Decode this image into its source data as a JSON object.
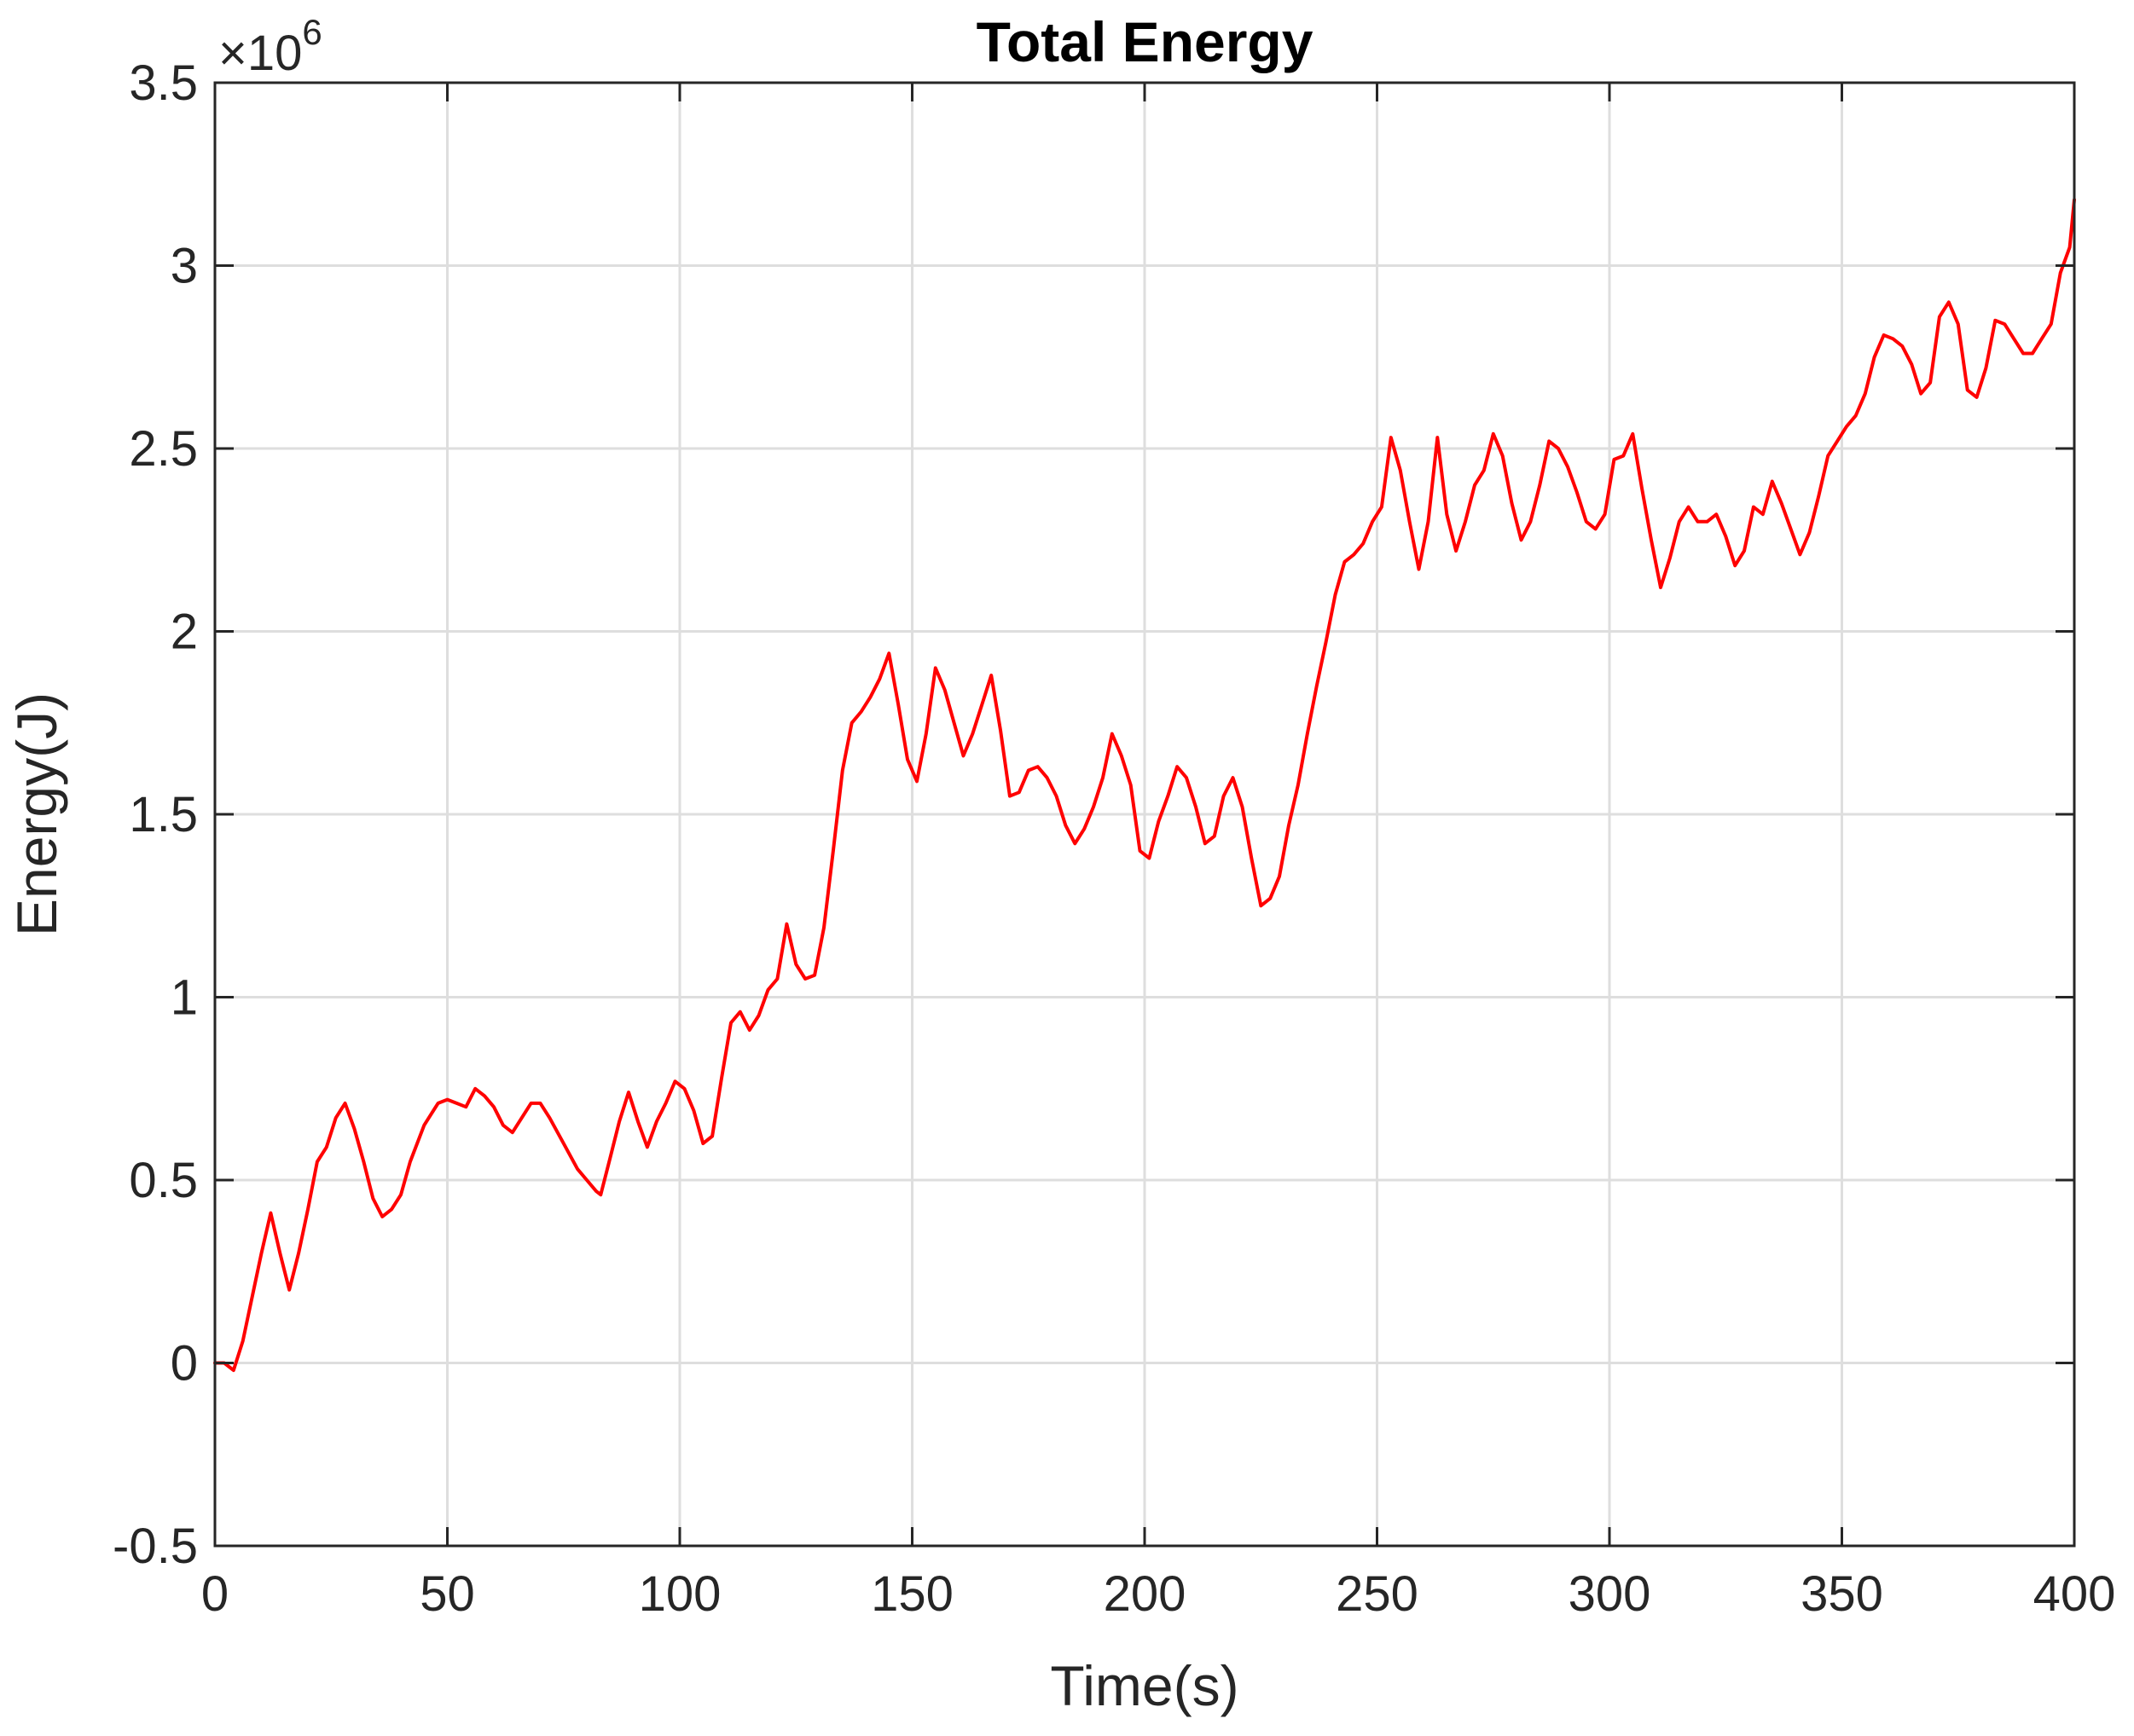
{
  "chart_data": {
    "type": "line",
    "title": "Total Energy",
    "xlabel": "Time(s)",
    "ylabel": "Energy(J)",
    "y_multiplier_base": "×10",
    "y_multiplier_exp": "6",
    "xlim": [
      0,
      400
    ],
    "ylim": [
      -0.5,
      3.5
    ],
    "xticks": [
      0,
      50,
      100,
      150,
      200,
      250,
      300,
      350,
      400
    ],
    "xtick_labels": [
      "0",
      "50",
      "100",
      "150",
      "200",
      "250",
      "300",
      "350",
      "400"
    ],
    "yticks": [
      -0.5,
      0,
      0.5,
      1,
      1.5,
      2,
      2.5,
      3,
      3.5
    ],
    "ytick_labels": [
      "-0.5",
      "0",
      "0.5",
      "1",
      "1.5",
      "2",
      "2.5",
      "3",
      "3.5"
    ],
    "grid": true,
    "series": [
      {
        "name": "Total Energy",
        "color": "#ff0000",
        "x": [
          0,
          2,
          4,
          6,
          8,
          10,
          12,
          14,
          16,
          18,
          20,
          22,
          24,
          26,
          28,
          30,
          32,
          34,
          36,
          38,
          40,
          42,
          45,
          48,
          50,
          52,
          54,
          56,
          58,
          60,
          62,
          64,
          66,
          68,
          70,
          72,
          75,
          78,
          80,
          82,
          83,
          85,
          87,
          89,
          91,
          93,
          95,
          97,
          99,
          101,
          103,
          105,
          107,
          109,
          111,
          113,
          115,
          117,
          119,
          121,
          123,
          125,
          127,
          129,
          131,
          133,
          135,
          137,
          139,
          141,
          143,
          145,
          147,
          149,
          151,
          153,
          155,
          157,
          159,
          161,
          163,
          165,
          167,
          169,
          171,
          173,
          175,
          177,
          179,
          181,
          183,
          185,
          187,
          189,
          191,
          193,
          195,
          197,
          199,
          201,
          203,
          205,
          207,
          209,
          211,
          213,
          215,
          217,
          219,
          221,
          223,
          225,
          227,
          229,
          231,
          233,
          235,
          237,
          239,
          241,
          243,
          245,
          247,
          249,
          251,
          253,
          255,
          257,
          259,
          261,
          263,
          265,
          267,
          269,
          271,
          273,
          275,
          277,
          279,
          281,
          283,
          285,
          287,
          289,
          291,
          293,
          295,
          297,
          299,
          301,
          303,
          305,
          307,
          309,
          311,
          313,
          315,
          317,
          319,
          321,
          323,
          325,
          327,
          329,
          331,
          333,
          335,
          337,
          339,
          341,
          343,
          345,
          347,
          349,
          351,
          353,
          355,
          357,
          359,
          361,
          363,
          365,
          367,
          369,
          371,
          373,
          375,
          377,
          379,
          381,
          383,
          385,
          387,
          389,
          391,
          393,
          395,
          397,
          399,
          400
        ],
        "y": [
          0.0,
          0.0,
          -0.02,
          0.06,
          0.18,
          0.3,
          0.41,
          0.3,
          0.2,
          0.3,
          0.42,
          0.55,
          0.59,
          0.67,
          0.71,
          0.64,
          0.55,
          0.45,
          0.4,
          0.42,
          0.46,
          0.55,
          0.65,
          0.71,
          0.72,
          0.71,
          0.7,
          0.75,
          0.73,
          0.7,
          0.65,
          0.63,
          0.67,
          0.71,
          0.71,
          0.67,
          0.6,
          0.53,
          0.5,
          0.47,
          0.46,
          0.56,
          0.66,
          0.74,
          0.66,
          0.59,
          0.66,
          0.71,
          0.77,
          0.75,
          0.69,
          0.6,
          0.62,
          0.78,
          0.93,
          0.96,
          0.91,
          0.95,
          1.02,
          1.05,
          1.2,
          1.09,
          1.05,
          1.06,
          1.19,
          1.4,
          1.62,
          1.75,
          1.78,
          1.82,
          1.87,
          1.94,
          1.8,
          1.65,
          1.59,
          1.72,
          1.9,
          1.84,
          1.75,
          1.66,
          1.72,
          1.8,
          1.88,
          1.73,
          1.55,
          1.56,
          1.62,
          1.63,
          1.6,
          1.55,
          1.47,
          1.42,
          1.46,
          1.52,
          1.6,
          1.72,
          1.66,
          1.58,
          1.4,
          1.38,
          1.48,
          1.55,
          1.63,
          1.6,
          1.52,
          1.42,
          1.44,
          1.55,
          1.6,
          1.52,
          1.38,
          1.25,
          1.27,
          1.33,
          1.47,
          1.58,
          1.72,
          1.85,
          1.97,
          2.1,
          2.19,
          2.21,
          2.24,
          2.3,
          2.34,
          2.53,
          2.44,
          2.3,
          2.17,
          2.3,
          2.53,
          2.32,
          2.22,
          2.3,
          2.4,
          2.44,
          2.54,
          2.48,
          2.35,
          2.25,
          2.3,
          2.4,
          2.52,
          2.5,
          2.45,
          2.38,
          2.3,
          2.28,
          2.32,
          2.47,
          2.48,
          2.54,
          2.39,
          2.25,
          2.12,
          2.2,
          2.3,
          2.34,
          2.3,
          2.3,
          2.32,
          2.26,
          2.18,
          2.22,
          2.34,
          2.32,
          2.41,
          2.35,
          2.28,
          2.21,
          2.27,
          2.37,
          2.48,
          2.52,
          2.56,
          2.59,
          2.65,
          2.75,
          2.81,
          2.8,
          2.78,
          2.73,
          2.65,
          2.68,
          2.86,
          2.9,
          2.84,
          2.66,
          2.64,
          2.72,
          2.85,
          2.84,
          2.8,
          2.76,
          2.76,
          2.8,
          2.84,
          2.98,
          3.05,
          3.18
        ]
      }
    ]
  }
}
